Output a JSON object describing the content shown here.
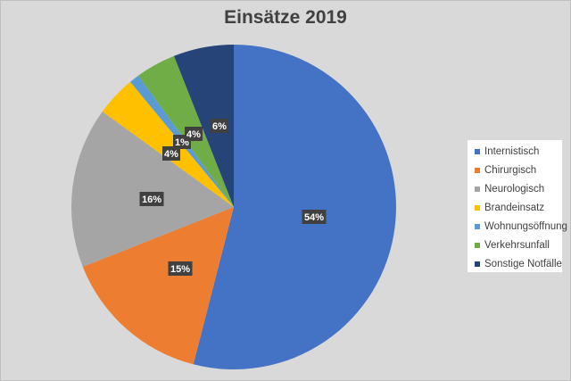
{
  "chart_data": {
    "type": "pie",
    "title": "Einsätze 2019",
    "legend_position": "right",
    "slices": [
      {
        "label": "Internistisch",
        "value": 54,
        "data_label": "54%",
        "color": "#4472c4"
      },
      {
        "label": "Chirurgisch",
        "value": 15,
        "data_label": "15%",
        "color": "#ed7d31"
      },
      {
        "label": "Neurologisch",
        "value": 16,
        "data_label": "16%",
        "color": "#a5a5a5"
      },
      {
        "label": "Brandeinsatz",
        "value": 4,
        "data_label": "4%",
        "color": "#ffc000"
      },
      {
        "label": "Wohnungsöffnung",
        "value": 1,
        "data_label": "1%",
        "color": "#5b9bd5"
      },
      {
        "label": "Verkehrsunfall",
        "value": 4,
        "data_label": "4%",
        "color": "#70ad47"
      },
      {
        "label": "Sonstige Notfälle",
        "value": 6,
        "data_label": "6%",
        "color": "#264478"
      }
    ]
  }
}
